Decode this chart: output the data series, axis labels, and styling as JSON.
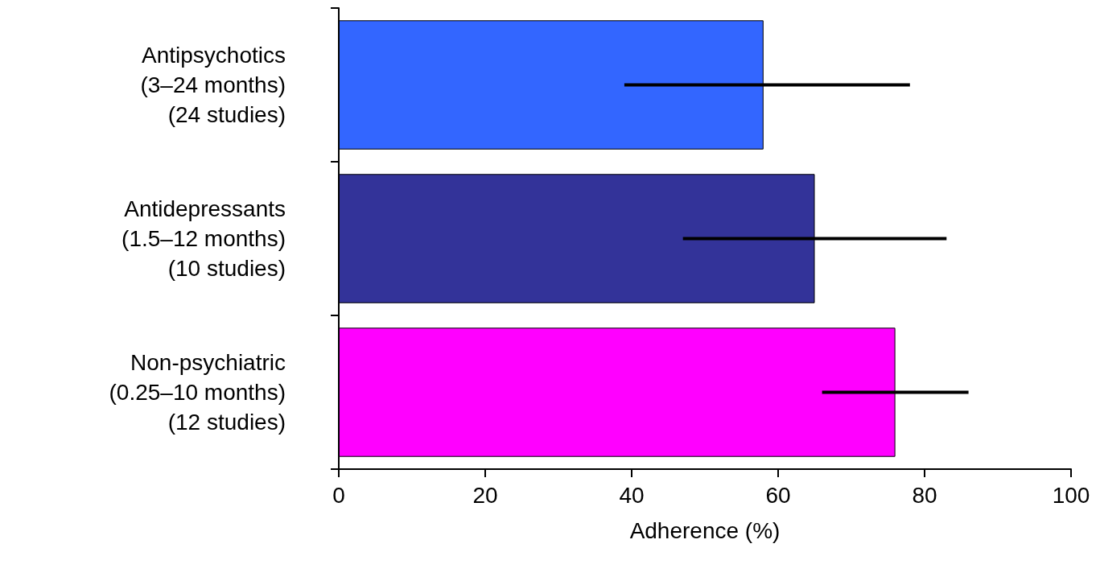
{
  "chart_data": {
    "type": "bar",
    "orientation": "horizontal",
    "xlabel": "Adherence (%)",
    "categories": [
      "Antipsychotics\n(3–24 months)\n(24 studies)",
      "Antidepressants\n(1.5–12 months)\n(10 studies)",
      "Non-psychiatric\n(0.25–10 months)\n(12 studies)"
    ],
    "values": [
      58,
      65,
      76
    ],
    "colors": [
      "#3366ff",
      "#333399",
      "#ff00ff"
    ],
    "errors": [
      [
        39,
        78
      ],
      [
        47,
        83
      ],
      [
        66,
        86
      ]
    ],
    "xlim": [
      0,
      100
    ],
    "xticks": [
      0,
      20,
      40,
      60,
      80,
      100
    ]
  }
}
